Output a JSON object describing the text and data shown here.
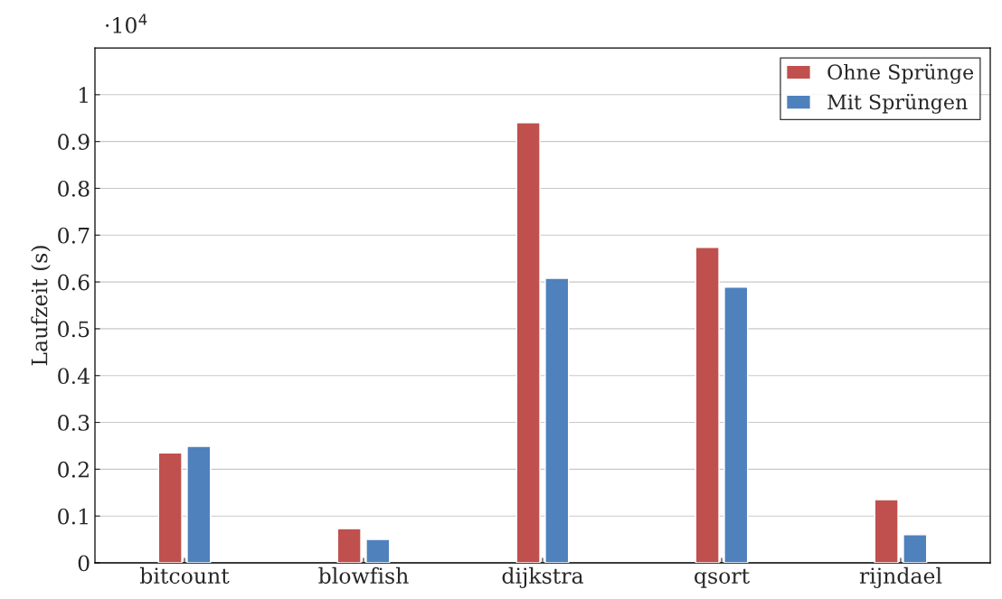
{
  "chart_data": {
    "type": "bar",
    "ylabel": "Laufzeit (s)",
    "categories": [
      "bitcount",
      "blowfish",
      "dijkstra",
      "qsort",
      "rijndael"
    ],
    "series": [
      {
        "name": "Ohne Sprünge",
        "color": "#c0504d",
        "values": [
          0.235,
          0.073,
          0.94,
          0.674,
          0.135
        ]
      },
      {
        "name": "Mit Sprüngen",
        "color": "#4f81bd",
        "values": [
          0.249,
          0.05,
          0.608,
          0.589,
          0.06
        ]
      }
    ],
    "ylim": [
      0,
      1.1
    ],
    "yticks": [
      0,
      0.1,
      0.2,
      0.3,
      0.4,
      0.5,
      0.6,
      0.7,
      0.8,
      0.9,
      1
    ],
    "grid": "y",
    "legend": "top right",
    "annotations": [
      "·10$^{4}$"
    ]
  }
}
